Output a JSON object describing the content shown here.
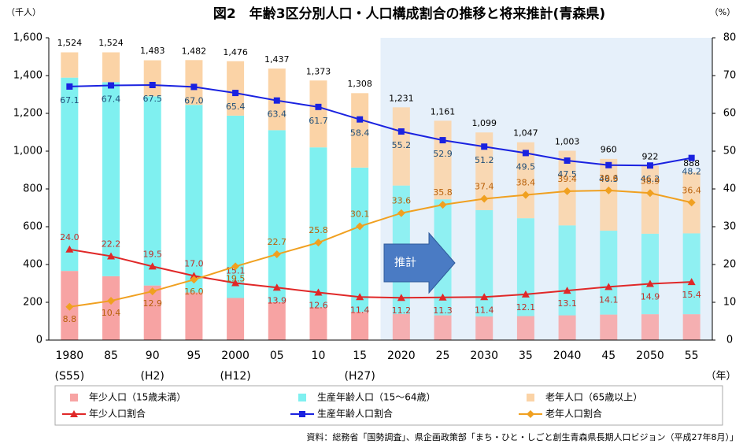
{
  "chart_data": {
    "type": "stacked-bar-line",
    "title": "図2　年齢3区分別人口・人口構成割合の推移と将来推計(青森県)",
    "y_unit": "（千人）",
    "y2_unit": "（%）",
    "x_unit": "（年）",
    "annotation": "推計",
    "source": "資料：総務省「国勢調査」、県企画政策部「まち・ひと・しごと創生青森県長期人口ビジョン（平成27年8月）」",
    "categories": [
      "1980",
      "85",
      "90",
      "95",
      "2000",
      "05",
      "10",
      "15",
      "2020",
      "25",
      "2030",
      "35",
      "2040",
      "45",
      "2050",
      "55"
    ],
    "category_sublabels": [
      "(S55)",
      null,
      "(H2)",
      null,
      "(H12)",
      null,
      null,
      "(H27)",
      null,
      null,
      null,
      null,
      null,
      null,
      null,
      null
    ],
    "ylim": [
      0,
      1600
    ],
    "yticks": [
      0,
      200,
      400,
      600,
      800,
      {
        "value": 1000,
        "label": "1,000"
      },
      {
        "value": 1200,
        "label": "1,200"
      },
      {
        "value": 1400,
        "label": "1,400"
      },
      {
        "value": 1600,
        "label": "1,600"
      }
    ],
    "y2lim": [
      0,
      80
    ],
    "y2ticks": [
      0,
      10,
      20,
      30,
      40,
      50,
      60,
      70,
      80
    ],
    "series": [
      {
        "name": "年少人口（15歳未満）",
        "color": "#f7a3a3",
        "values": [
          366,
          338,
          289,
          252,
          223,
          200,
          173,
          149,
          138,
          131,
          125,
          127,
          131,
          135,
          137,
          137
        ]
      },
      {
        "name": "生産年齢人口（15～64歳）",
        "color": "#7ff0f0",
        "values": [
          1023,
          1027,
          1001,
          993,
          965,
          911,
          847,
          764,
          680,
          614,
          563,
          518,
          476,
          444,
          426,
          428
        ]
      },
      {
        "name": "老年人口（65歳以上）",
        "color": "#fbd3a6",
        "values": [
          134,
          158,
          191,
          237,
          288,
          326,
          354,
          394,
          414,
          416,
          411,
          402,
          395,
          380,
          359,
          323
        ]
      },
      {
        "name": "年少人口割合",
        "color": "#e02828",
        "axis": "y2",
        "marker": "triangle",
        "label_color": "#c0302a",
        "values": [
          24.0,
          22.2,
          19.5,
          17.0,
          15.1,
          13.9,
          12.6,
          11.4,
          11.2,
          11.3,
          11.4,
          12.1,
          13.1,
          14.1,
          14.9,
          15.4
        ],
        "value_labels": [
          "24.0",
          "22.2",
          "19.5",
          "17.0",
          "15.1",
          "13.9",
          "12.6",
          "11.4",
          "11.2",
          "11.3",
          "11.4",
          "12.1",
          "13.1",
          "14.1",
          "14.9",
          "15.4"
        ]
      },
      {
        "name": "生産年齢人口割合",
        "color": "#1a22e0",
        "axis": "y2",
        "marker": "square",
        "label_color": "#1f4e79",
        "values": [
          67.1,
          67.4,
          67.5,
          67.0,
          65.4,
          63.4,
          61.7,
          58.4,
          55.2,
          52.9,
          51.2,
          49.5,
          47.5,
          46.3,
          46.2,
          48.2
        ],
        "value_labels": [
          "67.1",
          "67.4",
          "67.5",
          "67.0",
          "65.4",
          "63.4",
          "61.7",
          "58.4",
          "55.2",
          "52.9",
          "51.2",
          "49.5",
          "47.5",
          "46.3",
          "46.2",
          "48.2"
        ]
      },
      {
        "name": "老年人口割合",
        "color": "#f0a020",
        "axis": "y2",
        "marker": "diamond",
        "label_color": "#b8600a",
        "values": [
          8.8,
          10.4,
          12.9,
          16.0,
          19.5,
          22.7,
          25.8,
          30.1,
          33.6,
          35.8,
          37.4,
          38.4,
          39.4,
          39.6,
          38.9,
          36.4
        ],
        "value_labels": [
          "8.8",
          "10.4",
          "12.9",
          "16.0",
          "19.5",
          "22.7",
          "25.8",
          "30.1",
          "33.6",
          "35.8",
          "37.4",
          "38.4",
          "39.4",
          "39.6",
          "38.9",
          "36.4"
        ]
      }
    ],
    "totals": {
      "values": [
        1524,
        1524,
        1483,
        1482,
        1476,
        1437,
        1373,
        1308,
        1231,
        1161,
        1099,
        1047,
        1003,
        960,
        922,
        888
      ],
      "value_labels": [
        "1,524",
        "1,524",
        "1,483",
        "1,482",
        "1,476",
        "1,437",
        "1,373",
        "1,308",
        "1,231",
        "1,161",
        "1,099",
        "1,047",
        "1,003",
        "960",
        "922",
        "888"
      ]
    }
  }
}
